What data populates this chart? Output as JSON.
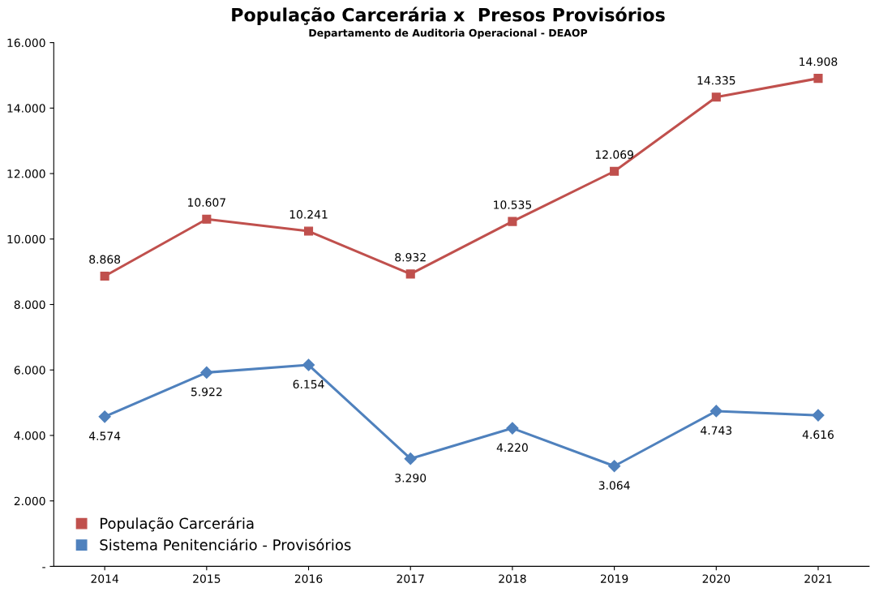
{
  "chart_data": {
    "type": "line",
    "title": "População Carcerária x  Presos Provisórios",
    "subtitle": "Departamento de Auditoria Operacional - DEAOP",
    "categories": [
      "2014",
      "2015",
      "2016",
      "2017",
      "2018",
      "2019",
      "2020",
      "2021"
    ],
    "series": [
      {
        "name": "População Carcerária",
        "color": "#c0504d",
        "marker": "square",
        "values": [
          8868,
          10607,
          10241,
          8932,
          10535,
          12069,
          14335,
          14908
        ],
        "value_labels": [
          "8.868",
          "10.607",
          "10.241",
          "8.932",
          "10.535",
          "12.069",
          "14.335",
          "14.908"
        ]
      },
      {
        "name": "Sistema Penitenciário - Provisórios",
        "color": "#4f81bd",
        "marker": "diamond",
        "values": [
          4574,
          5922,
          6154,
          3290,
          4220,
          3064,
          4743,
          4616
        ],
        "value_labels": [
          "4.574",
          "5.922",
          "6.154",
          "3.290",
          "4.220",
          "3.064",
          "4.743",
          "4.616"
        ]
      }
    ],
    "ylim": [
      0,
      16000
    ],
    "yticks": [
      {
        "value": 0,
        "label": "-"
      },
      {
        "value": 2000,
        "label": "2.000"
      },
      {
        "value": 4000,
        "label": "4.000"
      },
      {
        "value": 6000,
        "label": "6.000"
      },
      {
        "value": 8000,
        "label": "8.000"
      },
      {
        "value": 10000,
        "label": "10.000"
      },
      {
        "value": 12000,
        "label": "12.000"
      },
      {
        "value": 14000,
        "label": "14.000"
      },
      {
        "value": 16000,
        "label": "16.000"
      }
    ],
    "legend": "bottom left",
    "grid": false,
    "line_style": "solid"
  }
}
